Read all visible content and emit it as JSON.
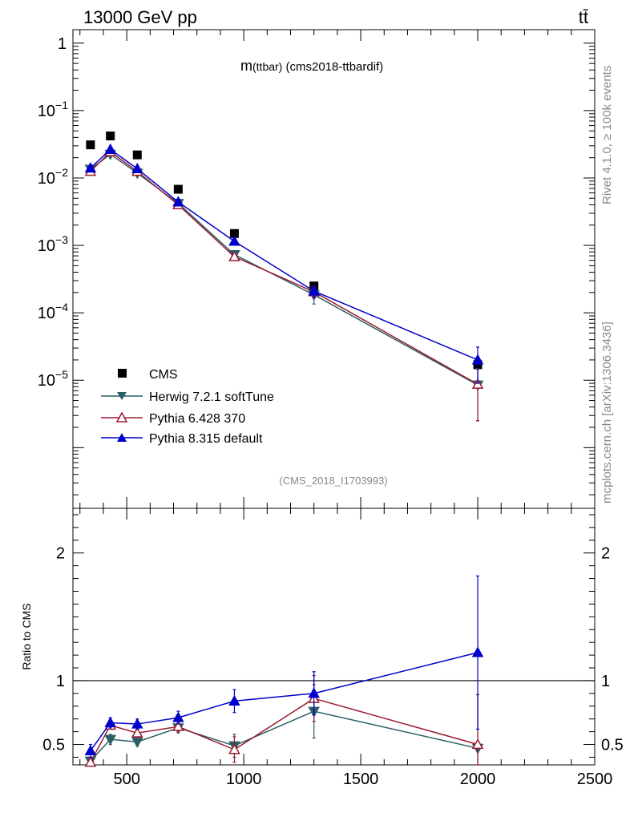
{
  "header": {
    "left": "13000 GeV pp",
    "right": "tt̄"
  },
  "side_labels": {
    "rivet": "Rivet 4.1.0, ≥ 100k events",
    "mcplots": "mcplots.cern.ch [arXiv:1306.3436]"
  },
  "chart_data": [
    {
      "type": "scatter",
      "title_main": "m",
      "title_sub": "(ttbar)",
      "title_rest": " (cms2018-ttbardif)",
      "watermark": "(CMS_2018_I1703993)",
      "xlabel": "",
      "ylabel": "",
      "xlim": [
        270,
        2500
      ],
      "ylim_log10": [
        -6.9,
        0.2
      ],
      "yscale": "log",
      "y_tick_labels": [
        {
          "base": "1",
          "exp": "",
          "value": 1
        },
        {
          "base": "10",
          "exp": "−1",
          "value": 0.1
        },
        {
          "base": "10",
          "exp": "−2",
          "value": 0.01
        },
        {
          "base": "10",
          "exp": "−3",
          "value": 0.001
        },
        {
          "base": "10",
          "exp": "−4",
          "value": 0.0001
        },
        {
          "base": "10",
          "exp": "−5",
          "value": 1e-05
        }
      ],
      "x": [
        345,
        430,
        545,
        720,
        960,
        1300,
        2000
      ],
      "legend": [
        {
          "name": "CMS",
          "color": "#000000",
          "marker": "square"
        },
        {
          "name": "Herwig 7.2.1 softTune",
          "color": "#2a5f64",
          "marker": "triangle-down"
        },
        {
          "name": "Pythia 6.428 370",
          "color": "#9b1b30",
          "marker": "triangle-open"
        },
        {
          "name": "Pythia 8.315 default",
          "color": "#0000cc",
          "marker": "triangle-up"
        }
      ],
      "series": [
        {
          "name": "CMS",
          "values": [
            0.031,
            0.042,
            0.022,
            0.0068,
            0.0015,
            0.00025,
            1.7e-05
          ],
          "err_low": [
            0,
            0,
            0,
            0,
            0,
            0,
            0
          ],
          "err_high": [
            0,
            0,
            0,
            0,
            0,
            0,
            0
          ]
        },
        {
          "name": "Herwig 7.2.1 softTune",
          "values": [
            0.0135,
            0.0225,
            0.0118,
            0.0042,
            0.00073,
            0.000185,
            8.5e-06
          ],
          "err_low": [
            0,
            0,
            0,
            0,
            0,
            5e-05,
            6e-06
          ],
          "err_high": [
            0,
            0,
            0,
            0,
            0,
            5e-05,
            6e-06
          ]
        },
        {
          "name": "Pythia 6.428 370",
          "values": [
            0.0125,
            0.0245,
            0.0125,
            0.004,
            0.00068,
            0.000205,
            8.7e-06
          ],
          "err_low": [
            0,
            0,
            0,
            0,
            0,
            4e-05,
            6.2e-06
          ],
          "err_high": [
            0,
            0,
            0,
            0,
            0,
            4e-05,
            6.2e-06
          ]
        },
        {
          "name": "Pythia 8.315 default",
          "values": [
            0.014,
            0.0265,
            0.0137,
            0.0044,
            0.00115,
            0.00021,
            2e-05
          ],
          "err_low": [
            0,
            0,
            0,
            0,
            0,
            4e-05,
            1.1e-05
          ],
          "err_high": [
            0,
            0,
            0,
            0,
            0,
            4e-05,
            1.1e-05
          ]
        }
      ]
    },
    {
      "type": "line",
      "ylabel": "Ratio to CMS",
      "xlim": [
        270,
        2500
      ],
      "ylim": [
        0.34,
        2.35
      ],
      "x_ticks": [
        500,
        1000,
        1500,
        2000,
        2500
      ],
      "y_ticks": [
        0.5,
        1,
        2
      ],
      "reference_line": 1,
      "x": [
        345,
        430,
        545,
        720,
        960,
        1300,
        2000
      ],
      "series": [
        {
          "name": "Herwig 7.2.1 softTune",
          "values": [
            0.37,
            0.54,
            0.52,
            0.63,
            0.49,
            0.76,
            0.47
          ],
          "err": [
            0.03,
            0.04,
            0.03,
            0.04,
            0.09,
            0.21,
            0.42
          ]
        },
        {
          "name": "Pythia 6.428 370",
          "values": [
            0.36,
            0.65,
            0.59,
            0.64,
            0.46,
            0.86,
            0.5
          ],
          "err": [
            0.03,
            0.03,
            0.03,
            0.04,
            0.1,
            0.18,
            0.39
          ]
        },
        {
          "name": "Pythia 8.315 default",
          "values": [
            0.45,
            0.67,
            0.66,
            0.71,
            0.84,
            0.9,
            1.22
          ],
          "err": [
            0.05,
            0.04,
            0.04,
            0.05,
            0.09,
            0.17,
            0.6
          ]
        }
      ]
    }
  ]
}
